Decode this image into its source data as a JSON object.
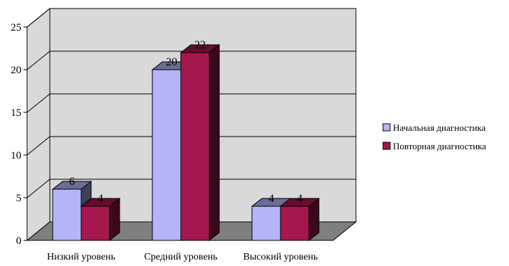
{
  "chart_data": {
    "type": "bar",
    "categories": [
      "Низкий уровень",
      "Средний уровень",
      "Высокий уровень"
    ],
    "series": [
      {
        "name": "Начальная диагностика",
        "values": [
          6,
          20,
          4
        ],
        "color": "#b4b4f8"
      },
      {
        "name": "Повторная диагностика",
        "values": [
          4,
          22,
          4
        ],
        "color": "#a5184e"
      }
    ],
    "ylim": [
      0,
      25
    ],
    "yticks": [
      0,
      5,
      10,
      15,
      20,
      25
    ],
    "grid": true,
    "legend_position": "right",
    "style": "3d-clustered-column",
    "wall_color": "#d9d9d9",
    "floor_color": "#7f7f7f"
  }
}
